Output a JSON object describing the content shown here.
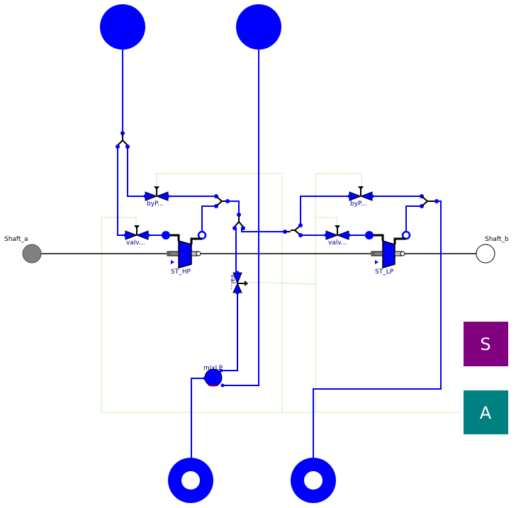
{
  "labels": {
    "shaft_a": "Shaft_a",
    "shaft_b": "Shaft_b",
    "st_hp": "ST_HP",
    "st_lp": "ST_LP",
    "valve_hp": "valv...",
    "valve_lp": "valv...",
    "bypass_hp": "byP...",
    "bypass_lp": "byP...",
    "valve_mid": "val...",
    "mix_lp": "mixLP"
  },
  "bus_boxes": {
    "sensors": {
      "label": "S",
      "color": "#800080"
    },
    "actuators": {
      "label": "A",
      "color": "#008080"
    }
  },
  "colors": {
    "fluid": "#0000ff",
    "signal": "#c8f0b4",
    "shaft": "#000000",
    "mixer_outlet": "#ff0000"
  }
}
